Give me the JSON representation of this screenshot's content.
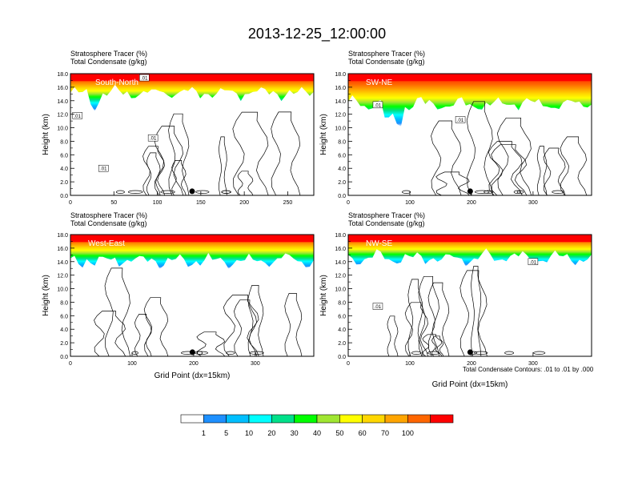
{
  "title": "2013-12-25_12:00:00",
  "footnote": "Total Condensate Contours: .01 to .01 by .000",
  "chart_data": [
    {
      "type": "heatmap",
      "panel": "top-left",
      "label": "South-North",
      "subtitle1": "Stratosphere Tracer   (%)",
      "subtitle2": "Total Condensate   (g/kg)",
      "ylabel": "Height (km)",
      "xlabel": "",
      "xlim": [
        0,
        280
      ],
      "ylim": [
        0,
        18
      ],
      "xticks": [
        0,
        50,
        100,
        150,
        200,
        250
      ],
      "marker_x": 140,
      "contour_labels": [
        {
          "x": 8,
          "y": 11.8,
          "text": ".01"
        },
        {
          "x": 38,
          "y": 4.0,
          "text": ".01"
        },
        {
          "x": 95,
          "y": 8.5,
          "text": ".01"
        },
        {
          "x": 85,
          "y": 17.4,
          "text": ".01"
        }
      ]
    },
    {
      "type": "heatmap",
      "panel": "top-right",
      "label": "SW-NE",
      "subtitle1": "Stratosphere Tracer   (%)",
      "subtitle2": "Total Condensate   (g/kg)",
      "ylabel": "Height (km)",
      "xlabel": "",
      "xlim": [
        0,
        395
      ],
      "ylim": [
        0,
        18
      ],
      "xticks": [
        0,
        100,
        200,
        300
      ],
      "marker_x": 198,
      "contour_labels": [
        {
          "x": 48,
          "y": 13.4,
          "text": ".01"
        },
        {
          "x": 182,
          "y": 11.2,
          "text": ".01"
        }
      ]
    },
    {
      "type": "heatmap",
      "panel": "bottom-left",
      "label": "West-East",
      "subtitle1": "Stratosphere Tracer   (%)",
      "subtitle2": "Total Condensate   (g/kg)",
      "ylabel": "Height (km)",
      "xlabel": "Grid Point (dx=15km)",
      "xlim": [
        0,
        395
      ],
      "ylim": [
        0,
        18
      ],
      "xticks": [
        0,
        100,
        200,
        300
      ],
      "marker_x": 198,
      "contour_labels": []
    },
    {
      "type": "heatmap",
      "panel": "bottom-right",
      "label": "NW-SE",
      "subtitle1": "Stratosphere Tracer   (%)",
      "subtitle2": "Total Condensate   (g/kg)",
      "ylabel": "Height (km)",
      "xlabel": "Grid Point (dx=15km)",
      "xlim": [
        0,
        395
      ],
      "ylim": [
        0,
        18
      ],
      "xticks": [
        0,
        100,
        200,
        300
      ],
      "marker_x": 198,
      "contour_labels": [
        {
          "x": 48,
          "y": 7.4,
          "text": ".01"
        },
        {
          "x": 300,
          "y": 14.0,
          "text": ".01"
        }
      ]
    }
  ],
  "colorbar": {
    "labels": [
      "1",
      "5",
      "10",
      "20",
      "30",
      "40",
      "50",
      "60",
      "70",
      "100"
    ],
    "colors": [
      "#ffffff",
      "#1e90ff",
      "#00bfff",
      "#00ffff",
      "#00e08a",
      "#00ff00",
      "#a0e632",
      "#ffff00",
      "#ffd700",
      "#ffa500",
      "#ff6600",
      "#ff0000"
    ]
  }
}
